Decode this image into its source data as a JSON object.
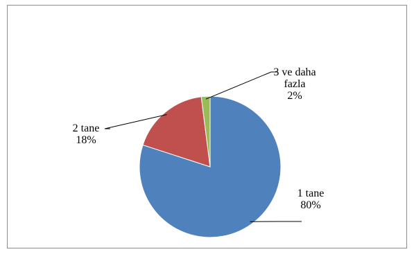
{
  "chart_data": {
    "type": "pie",
    "title": "",
    "start_angle_deg": 0,
    "direction": "clockwise",
    "legend": "none",
    "slices": [
      {
        "name_lines": [
          "1 tane"
        ],
        "value": 80,
        "label": "80%",
        "color": "#4f81bd"
      },
      {
        "name_lines": [
          "2 tane"
        ],
        "value": 18,
        "label": "18%",
        "color": "#c0504d"
      },
      {
        "name_lines": [
          "3 ve daha",
          "fazla"
        ],
        "value": 2,
        "label": "2%",
        "color": "#9bbb59"
      }
    ]
  }
}
